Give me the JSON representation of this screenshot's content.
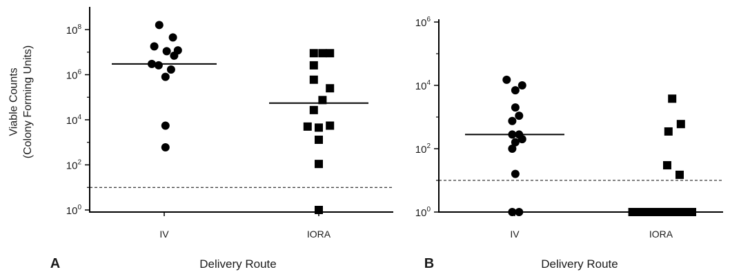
{
  "chart_data": [
    {
      "type": "scatter",
      "panel_label": "A",
      "xlabel": "Delivery Route",
      "ylabel_line1": "Viable Counts",
      "ylabel_line2": "(Colony Forming Units)",
      "yscale": "log10",
      "ylim": [
        1,
        1000000000
      ],
      "yticks": [
        {
          "base": "10",
          "exp": "0",
          "value": 1
        },
        {
          "base": "10",
          "exp": "2",
          "value": 100
        },
        {
          "base": "10",
          "exp": "4",
          "value": 10000
        },
        {
          "base": "10",
          "exp": "6",
          "value": 1000000
        },
        {
          "base": "10",
          "exp": "8",
          "value": 100000000
        }
      ],
      "categories": [
        "IV",
        "IORA"
      ],
      "detection_limit": 10,
      "series": [
        {
          "category": "IV",
          "marker": "circle",
          "median": 3000000,
          "points": [
            {
              "dx": -0.08,
              "y": 160000000
            },
            {
              "dx": 0.14,
              "y": 45000000
            },
            {
              "dx": -0.16,
              "y": 18000000
            },
            {
              "dx": 0.04,
              "y": 11000000
            },
            {
              "dx": 0.22,
              "y": 12000000
            },
            {
              "dx": 0.16,
              "y": 7000000
            },
            {
              "dx": -0.2,
              "y": 3000000
            },
            {
              "dx": -0.09,
              "y": 2600000
            },
            {
              "dx": 0.11,
              "y": 1700000
            },
            {
              "dx": 0.02,
              "y": 800000
            },
            {
              "dx": 0.02,
              "y": 5500
            },
            {
              "dx": 0.02,
              "y": 600
            }
          ]
        },
        {
          "category": "IORA",
          "marker": "square",
          "median": 55000,
          "points": [
            {
              "dx": -0.08,
              "y": 9000000
            },
            {
              "dx": 0.06,
              "y": 9000000
            },
            {
              "dx": 0.18,
              "y": 9000000
            },
            {
              "dx": -0.08,
              "y": 2600000
            },
            {
              "dx": -0.08,
              "y": 600000
            },
            {
              "dx": 0.18,
              "y": 250000
            },
            {
              "dx": 0.06,
              "y": 75000
            },
            {
              "dx": -0.08,
              "y": 27000
            },
            {
              "dx": -0.18,
              "y": 5000
            },
            {
              "dx": 0.0,
              "y": 4500
            },
            {
              "dx": 0.18,
              "y": 5500
            },
            {
              "dx": 0.0,
              "y": 1300
            },
            {
              "dx": 0.0,
              "y": 110
            },
            {
              "dx": 0.0,
              "y": 1
            }
          ]
        }
      ]
    },
    {
      "type": "scatter",
      "panel_label": "B",
      "xlabel": "Delivery Route",
      "yscale": "log10",
      "ylim": [
        1,
        1000000
      ],
      "yticks": [
        {
          "base": "10",
          "exp": "0",
          "value": 1
        },
        {
          "base": "10",
          "exp": "2",
          "value": 100
        },
        {
          "base": "10",
          "exp": "4",
          "value": 10000
        },
        {
          "base": "10",
          "exp": "6",
          "value": 1000000
        }
      ],
      "categories": [
        "IV",
        "IORA"
      ],
      "detection_limit": 10,
      "series": [
        {
          "category": "IV",
          "marker": "circle",
          "median": 280,
          "points": [
            {
              "dx": -0.13,
              "y": 15000
            },
            {
              "dx": 0.12,
              "y": 10000
            },
            {
              "dx": 0.01,
              "y": 7000
            },
            {
              "dx": 0.01,
              "y": 2000
            },
            {
              "dx": 0.07,
              "y": 1100
            },
            {
              "dx": -0.04,
              "y": 750
            },
            {
              "dx": -0.04,
              "y": 280
            },
            {
              "dx": 0.07,
              "y": 280
            },
            {
              "dx": 0.12,
              "y": 200
            },
            {
              "dx": 0.01,
              "y": 160
            },
            {
              "dx": -0.04,
              "y": 100
            },
            {
              "dx": 0.01,
              "y": 16
            },
            {
              "dx": -0.04,
              "y": 1
            },
            {
              "dx": 0.07,
              "y": 1
            }
          ]
        },
        {
          "category": "IORA",
          "marker": "square",
          "median": 1,
          "points": [
            {
              "dx": 0.18,
              "y": 3800
            },
            {
              "dx": 0.32,
              "y": 600
            },
            {
              "dx": 0.12,
              "y": 350
            },
            {
              "dx": 0.1,
              "y": 30
            },
            {
              "dx": 0.3,
              "y": 15
            },
            {
              "dx": -0.46,
              "y": 1
            },
            {
              "dx": -0.34,
              "y": 1
            },
            {
              "dx": -0.22,
              "y": 1
            },
            {
              "dx": -0.1,
              "y": 1
            },
            {
              "dx": 0.02,
              "y": 1
            },
            {
              "dx": 0.14,
              "y": 1
            },
            {
              "dx": 0.26,
              "y": 1
            },
            {
              "dx": 0.38,
              "y": 1
            },
            {
              "dx": 0.5,
              "y": 1
            }
          ]
        }
      ]
    }
  ]
}
